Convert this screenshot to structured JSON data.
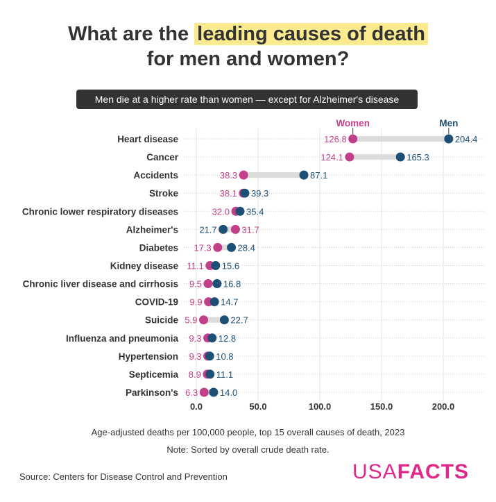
{
  "title": {
    "line1_pre": "What are the ",
    "line1_highlight": "leading causes of death",
    "line2": "for men and women?"
  },
  "subtitle": "Men die at a higher rate than women — except for Alzheimer's disease",
  "chart_data": {
    "type": "dumbbell",
    "categories": [
      "Heart disease",
      "Cancer",
      "Accidents",
      "Stroke",
      "Chronic lower respiratory diseases",
      "Alzheimer's",
      "Diabetes",
      "Kidney disease",
      "Chronic liver disease and cirrhosis",
      "COVID-19",
      "Suicide",
      "Influenza and pneumonia",
      "Hypertension",
      "Septicemia",
      "Parkinson's"
    ],
    "series": [
      {
        "name": "Women",
        "color": "#c2408a",
        "values": [
          126.8,
          124.1,
          38.3,
          38.1,
          32.0,
          31.7,
          17.3,
          11.1,
          9.5,
          9.9,
          5.9,
          9.3,
          9.3,
          8.9,
          6.3
        ]
      },
      {
        "name": "Men",
        "color": "#1e4f74",
        "values": [
          204.4,
          165.3,
          87.1,
          39.3,
          35.4,
          21.7,
          28.4,
          15.6,
          16.8,
          14.7,
          22.7,
          12.8,
          10.8,
          11.1,
          14.0
        ]
      }
    ],
    "xticks": [
      "0.0",
      "50.0",
      "100.0",
      "150.0",
      "200.0"
    ],
    "xlim": [
      0,
      230
    ],
    "grid": true,
    "xlabel": "Age-adjusted deaths per 100,000 people, top 15 overall causes of death, 2023"
  },
  "note": "Note: Sorted by overall crude death rate.",
  "source": "Source: Centers for Disease Control and Prevention",
  "logo": {
    "a": "USA",
    "b": "FACTS"
  }
}
